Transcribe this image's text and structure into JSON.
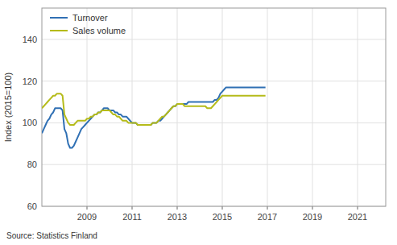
{
  "chart_data": {
    "type": "line",
    "y_label": "Index (2015=100)",
    "annotations": [
      "Source: Statistics Finland"
    ],
    "x": [
      2007,
      2007.083333333333,
      2007.166666666667,
      2007.25,
      2007.333333333333,
      2007.416666666667,
      2007.5,
      2007.583333333333,
      2007.666666666667,
      2007.75,
      2007.833333333333,
      2007.916666666667,
      2008,
      2008.083333333333,
      2008.166666666667,
      2008.25,
      2008.333333333333,
      2008.416666666667,
      2008.5,
      2008.583333333333,
      2008.666666666667,
      2008.75,
      2008.833333333333,
      2008.916666666667,
      2009,
      2009.083333333333,
      2009.166666666667,
      2009.25,
      2009.333333333333,
      2009.416666666667,
      2009.5,
      2009.583333333333,
      2009.666666666667,
      2009.75,
      2009.833333333333,
      2009.916666666667,
      2010,
      2010.083333333333,
      2010.166666666667,
      2010.25,
      2010.333333333333,
      2010.416666666667,
      2010.5,
      2010.583333333333,
      2010.666666666667,
      2010.75,
      2010.833333333333,
      2010.916666666667,
      2011,
      2011.083333333333,
      2011.166666666667,
      2011.25,
      2011.333333333333,
      2011.416666666667,
      2011.5,
      2011.583333333333,
      2011.666666666667,
      2011.75,
      2011.833333333333,
      2011.916666666667,
      2012,
      2012.083333333333,
      2012.166666666667,
      2012.25,
      2012.333333333333,
      2012.416666666667,
      2012.5,
      2012.583333333333,
      2012.666666666667,
      2012.75,
      2012.833333333333,
      2012.916666666667,
      2013,
      2013.083333333333,
      2013.166666666667,
      2013.25,
      2013.333333333333,
      2013.416666666667,
      2013.5,
      2013.583333333333,
      2013.666666666667,
      2013.75,
      2013.833333333333,
      2013.916666666667,
      2014,
      2014.083333333333,
      2014.166666666667,
      2014.25,
      2014.333333333333,
      2014.416666666667,
      2014.5,
      2014.583333333333,
      2014.666666666667,
      2014.75,
      2014.833333333333,
      2014.916666666667,
      2015,
      2015.083333333333,
      2015.166666666667,
      2015.25,
      2015.333333333333,
      2015.416666666667,
      2015.5,
      2015.583333333333,
      2015.666666666667,
      2015.75,
      2015.833333333333,
      2015.916666666667,
      2016,
      2016.083333333333,
      2016.166666666667,
      2016.25,
      2016.333333333333,
      2016.416666666667,
      2016.5,
      2016.583333333333,
      2016.666666666667,
      2016.75,
      2016.833333333333,
      2016.916666666667
    ],
    "series": [
      {
        "name": "Turnover",
        "color": "#3070b4",
        "values": [
          95,
          97,
          99,
          101,
          102,
          104,
          105,
          107,
          107,
          107,
          107,
          106,
          97,
          95,
          90,
          88,
          88,
          89,
          91,
          93,
          95,
          97,
          98,
          99,
          100,
          101,
          102,
          103,
          104,
          104,
          105,
          105,
          106,
          107,
          107,
          107,
          106,
          106,
          106,
          105,
          105,
          104,
          104,
          103,
          103,
          103,
          102,
          101,
          100,
          100,
          100,
          99,
          99,
          99,
          99,
          99,
          99,
          99,
          99,
          100,
          100,
          100,
          101,
          101,
          102,
          103,
          104,
          105,
          106,
          107,
          108,
          108,
          109,
          109,
          109,
          109,
          109,
          109,
          110,
          110,
          110,
          110,
          110,
          110,
          110,
          110,
          110,
          110,
          110,
          110,
          110,
          110,
          111,
          111,
          112,
          114,
          115,
          116,
          117,
          117,
          117,
          117,
          117,
          117,
          117,
          117,
          117,
          117,
          117,
          117,
          117,
          117,
          117,
          117,
          117,
          117,
          117,
          117,
          117,
          117
        ]
      },
      {
        "name": "Sales volume",
        "color": "#b5bb1a",
        "values": [
          107,
          108,
          109,
          110,
          111,
          112,
          113,
          113,
          114,
          114,
          114,
          113,
          104,
          102,
          100,
          99,
          99,
          99,
          100,
          101,
          101,
          101,
          101,
          101,
          102,
          102,
          103,
          103,
          104,
          104,
          105,
          105,
          106,
          106,
          106,
          106,
          106,
          105,
          104,
          104,
          103,
          103,
          102,
          101,
          101,
          101,
          100,
          100,
          100,
          100,
          100,
          99,
          99,
          99,
          99,
          99,
          99,
          99,
          99,
          100,
          100,
          100,
          101,
          102,
          103,
          103,
          104,
          105,
          106,
          107,
          108,
          108,
          109,
          109,
          109,
          109,
          108,
          108,
          108,
          108,
          108,
          108,
          108,
          108,
          108,
          108,
          108,
          108,
          107,
          107,
          107,
          108,
          109,
          110,
          111,
          112,
          113,
          113,
          113,
          113,
          113,
          113,
          113,
          113,
          113,
          113,
          113,
          113,
          113,
          113,
          113,
          113,
          113,
          113,
          113,
          113,
          113,
          113,
          113,
          113
        ]
      }
    ],
    "xlim": [
      2007,
      2022.25
    ],
    "xticks": [
      2009,
      2011,
      2013,
      2015,
      2017,
      2019,
      2021
    ],
    "ylim": [
      60,
      155
    ],
    "yticks": [
      60,
      80,
      100,
      120,
      140
    ],
    "grid": true,
    "legend": "upper left"
  }
}
